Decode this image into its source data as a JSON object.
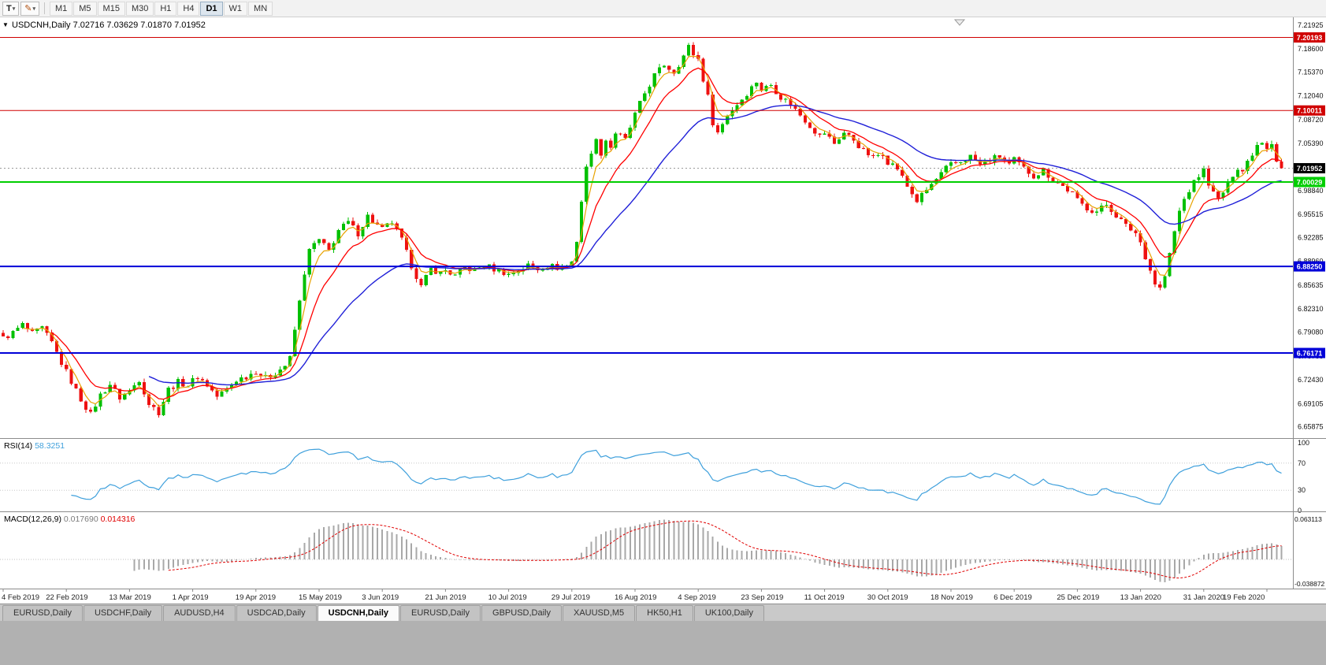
{
  "toolbar": {
    "text_tool_label": "T",
    "draw_tool_icon": "✎",
    "dropdown_caret": "▾",
    "timeframes": [
      "M1",
      "M5",
      "M15",
      "M30",
      "H1",
      "H4",
      "D1",
      "W1",
      "MN"
    ],
    "active_timeframe": "D1"
  },
  "tabs": {
    "items": [
      "EURUSD,Daily",
      "USDCHF,Daily",
      "AUDUSD,H4",
      "USDCAD,Daily",
      "USDCNH,Daily",
      "EURUSD,Daily",
      "GBPUSD,Daily",
      "XAUUSD,M5",
      "HK50,H1",
      "UK100,Daily"
    ],
    "active_index": 4
  },
  "chart_data": [
    {
      "type": "candlestick",
      "symbol": "USDCNH",
      "timeframe": "Daily",
      "legend": "USDCNH,Daily",
      "ohlc_text": "7.02716 7.03629 7.01870 7.01952",
      "open": "7.02716",
      "high": "7.03629",
      "low": "7.01870",
      "close": "7.01952",
      "y_axis_labels": [
        "7.21925",
        "7.18600",
        "7.15370",
        "7.12040",
        "7.08720",
        "7.05390",
        "6.98840",
        "6.95515",
        "6.92285",
        "6.88960",
        "6.85635",
        "6.82310",
        "6.79080",
        "6.75755",
        "6.72430",
        "6.69105",
        "6.65875"
      ],
      "x_axis_labels": [
        "4 Feb 2019",
        "22 Feb 2019",
        "13 Mar 2019",
        "1 Apr 2019",
        "19 Apr 2019",
        "15 May 2019",
        "3 Jun 2019",
        "21 Jun 2019",
        "10 Jul 2019",
        "29 Jul 2019",
        "16 Aug 2019",
        "4 Sep 2019",
        "23 Sep 2019",
        "11 Oct 2019",
        "30 Oct 2019",
        "18 Nov 2019",
        "6 Dec 2019",
        "25 Dec 2019",
        "13 Jan 2020",
        "31 Jan 2020",
        "19 Feb 2020"
      ],
      "horizontal_lines": [
        {
          "value": 7.20193,
          "label": "7.20193",
          "color": "#D00000",
          "width": 1
        },
        {
          "value": 7.10011,
          "label": "7.10011",
          "color": "#D00000",
          "width": 1
        },
        {
          "value": 7.00029,
          "label": "7.00029",
          "color": "#00CE00",
          "width": 2
        },
        {
          "value": 6.8825,
          "label": "6.88250",
          "color": "#0000D8",
          "width": 2
        },
        {
          "value": 6.76171,
          "label": "6.76171",
          "color": "#0000D8",
          "width": 2
        }
      ],
      "current_price": {
        "value": 7.01952,
        "label": "7.01952",
        "box_color": "#000000"
      },
      "price_range": {
        "top": 7.23,
        "bottom": 6.643
      },
      "candle_count": 264,
      "price_path": [
        [
          0,
          6.782
        ],
        [
          2,
          6.79
        ],
        [
          4,
          6.801
        ],
        [
          6,
          6.788
        ],
        [
          8,
          6.796
        ],
        [
          10,
          6.776
        ],
        [
          12,
          6.748
        ],
        [
          14,
          6.722
        ],
        [
          16,
          6.697
        ],
        [
          18,
          6.676
        ],
        [
          20,
          6.703
        ],
        [
          22,
          6.718
        ],
        [
          24,
          6.699
        ],
        [
          26,
          6.709
        ],
        [
          28,
          6.725
        ],
        [
          30,
          6.691
        ],
        [
          32,
          6.679
        ],
        [
          34,
          6.711
        ],
        [
          36,
          6.721
        ],
        [
          38,
          6.717
        ],
        [
          40,
          6.729
        ],
        [
          42,
          6.717
        ],
        [
          44,
          6.701
        ],
        [
          46,
          6.711
        ],
        [
          48,
          6.724
        ],
        [
          50,
          6.729
        ],
        [
          52,
          6.737
        ],
        [
          54,
          6.727
        ],
        [
          56,
          6.734
        ],
        [
          58,
          6.744
        ],
        [
          59,
          6.754
        ],
        [
          60,
          6.794
        ],
        [
          61,
          6.833
        ],
        [
          62,
          6.874
        ],
        [
          63,
          6.904
        ],
        [
          64,
          6.914
        ],
        [
          65,
          6.919
        ],
        [
          67,
          6.904
        ],
        [
          69,
          6.933
        ],
        [
          71,
          6.944
        ],
        [
          73,
          6.929
        ],
        [
          75,
          6.953
        ],
        [
          77,
          6.939
        ],
        [
          78,
          6.934
        ],
        [
          80,
          6.944
        ],
        [
          82,
          6.919
        ],
        [
          84,
          6.884
        ],
        [
          86,
          6.854
        ],
        [
          88,
          6.879
        ],
        [
          90,
          6.874
        ],
        [
          91,
          6.877
        ],
        [
          93,
          6.869
        ],
        [
          95,
          6.881
        ],
        [
          97,
          6.877
        ],
        [
          99,
          6.884
        ],
        [
          101,
          6.879
        ],
        [
          103,
          6.874
        ],
        [
          104,
          6.871
        ],
        [
          106,
          6.877
        ],
        [
          108,
          6.884
        ],
        [
          110,
          6.879
        ],
        [
          112,
          6.884
        ],
        [
          114,
          6.881
        ],
        [
          116,
          6.884
        ],
        [
          117,
          6.889
        ],
        [
          118,
          6.919
        ],
        [
          119,
          6.974
        ],
        [
          120,
          7.019
        ],
        [
          121,
          7.044
        ],
        [
          122,
          7.057
        ],
        [
          123,
          7.041
        ],
        [
          124,
          7.059
        ],
        [
          125,
          7.049
        ],
        [
          126,
          7.069
        ],
        [
          128,
          7.059
        ],
        [
          130,
          7.094
        ],
        [
          132,
          7.124
        ],
        [
          134,
          7.149
        ],
        [
          136,
          7.164
        ],
        [
          138,
          7.154
        ],
        [
          140,
          7.176
        ],
        [
          141,
          7.189
        ],
        [
          142,
          7.179
        ],
        [
          143,
          7.172
        ],
        [
          144,
          7.144
        ],
        [
          145,
          7.119
        ],
        [
          146,
          7.084
        ],
        [
          147,
          7.069
        ],
        [
          149,
          7.094
        ],
        [
          151,
          7.109
        ],
        [
          153,
          7.124
        ],
        [
          155,
          7.141
        ],
        [
          156,
          7.129
        ],
        [
          158,
          7.136
        ],
        [
          160,
          7.119
        ],
        [
          162,
          7.109
        ],
        [
          164,
          7.094
        ],
        [
          166,
          7.079
        ],
        [
          168,
          7.064
        ],
        [
          169,
          7.069
        ],
        [
          171,
          7.054
        ],
        [
          173,
          7.069
        ],
        [
          175,
          7.059
        ],
        [
          177,
          7.044
        ],
        [
          179,
          7.034
        ],
        [
          181,
          7.041
        ],
        [
          182,
          7.029
        ],
        [
          184,
          7.019
        ],
        [
          186,
          6.994
        ],
        [
          188,
          6.974
        ],
        [
          190,
          6.989
        ],
        [
          192,
          7.004
        ],
        [
          194,
          7.019
        ],
        [
          195,
          7.024
        ],
        [
          197,
          7.029
        ],
        [
          199,
          7.036
        ],
        [
          201,
          7.024
        ],
        [
          203,
          7.031
        ],
        [
          205,
          7.036
        ],
        [
          207,
          7.024
        ],
        [
          208,
          7.031
        ],
        [
          210,
          7.019
        ],
        [
          212,
          7.009
        ],
        [
          214,
          7.016
        ],
        [
          216,
          7.004
        ],
        [
          218,
          6.994
        ],
        [
          220,
          6.984
        ],
        [
          221,
          6.974
        ],
        [
          223,
          6.964
        ],
        [
          225,
          6.959
        ],
        [
          227,
          6.969
        ],
        [
          229,
          6.954
        ],
        [
          231,
          6.939
        ],
        [
          233,
          6.929
        ],
        [
          234,
          6.916
        ],
        [
          235,
          6.897
        ],
        [
          236,
          6.877
        ],
        [
          237,
          6.859
        ],
        [
          238,
          6.852
        ],
        [
          239,
          6.869
        ],
        [
          240,
          6.899
        ],
        [
          241,
          6.931
        ],
        [
          242,
          6.959
        ],
        [
          243,
          6.976
        ],
        [
          244,
          6.989
        ],
        [
          245,
          6.999
        ],
        [
          246,
          7.009
        ],
        [
          247,
          7.016
        ],
        [
          248,
          6.999
        ],
        [
          249,
          6.984
        ],
        [
          250,
          6.976
        ],
        [
          251,
          6.986
        ],
        [
          252,
          6.996
        ],
        [
          253,
          7.011
        ],
        [
          254,
          7.021
        ],
        [
          255,
          7.016
        ],
        [
          256,
          7.029
        ],
        [
          257,
          7.041
        ],
        [
          258,
          7.053
        ],
        [
          259,
          7.058
        ],
        [
          260,
          7.049
        ],
        [
          261,
          7.056
        ],
        [
          262,
          7.031
        ],
        [
          263,
          7.0195
        ]
      ],
      "colors": {
        "up": "#00C000",
        "down": "#EE1111",
        "ma_fast": "#E8A200",
        "ma_mid": "#FF0000",
        "ma_slow": "#2020D8",
        "current_line": "#9A9A9A"
      },
      "ma_periods": {
        "fast": 4,
        "mid": 10,
        "slow": 30
      }
    },
    {
      "type": "line",
      "name": "RSI",
      "label": "RSI(14)",
      "value": "58.3251",
      "period": 14,
      "levels": [
        "100",
        "70",
        "30",
        "0"
      ],
      "level_values": [
        100,
        70,
        30,
        0
      ],
      "color": "#3FA0DC",
      "range": [
        0,
        100
      ]
    },
    {
      "type": "macd",
      "name": "MACD",
      "label": "MACD(12,26,9)",
      "values": [
        "0.017690",
        "0.014316"
      ],
      "params": [
        12,
        26,
        9
      ],
      "axis_labels": [
        "0.063113",
        "-0.038872"
      ],
      "axis_values": [
        0.063113,
        -0.038872
      ],
      "hist_color": "#A8A8A8",
      "signal_color": "#E00000"
    }
  ]
}
